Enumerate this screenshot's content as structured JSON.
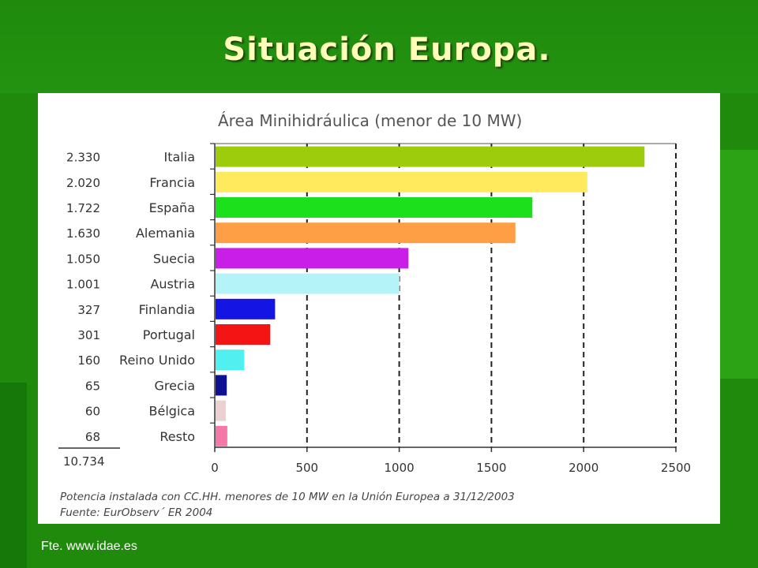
{
  "slide_title": "Situación Europa.",
  "credit": "Fte. www.idae.es",
  "chart_data": {
    "type": "bar",
    "orientation": "horizontal",
    "title": "Área Minihidráulica (menor de 10 MW)",
    "categories": [
      "Italia",
      "Francia",
      "España",
      "Alemania",
      "Suecia",
      "Austria",
      "Finlandia",
      "Portugal",
      "Reino Unido",
      "Grecia",
      "Bélgica",
      "Resto"
    ],
    "values": [
      2330,
      2020,
      1722,
      1630,
      1050,
      1001,
      327,
      301,
      160,
      65,
      60,
      68
    ],
    "value_labels": [
      "2.330",
      "2.020",
      "1.722",
      "1.630",
      "1.050",
      "1.001",
      "327",
      "301",
      "160",
      "65",
      "60",
      "68"
    ],
    "total_label": "10.734",
    "colors": [
      "#9ccc0c",
      "#ffe95c",
      "#1ce01c",
      "#ff9f45",
      "#c81ee8",
      "#b4f4f8",
      "#1414e4",
      "#f41414",
      "#50f0f0",
      "#101094",
      "#ead0d0",
      "#f478a8"
    ],
    "xlim": [
      0,
      2500
    ],
    "xticks": [
      "0",
      "500",
      "1000",
      "1500",
      "2000",
      "2500"
    ],
    "grid": "dashed vertical",
    "footnote_line1": "Potencia instalada con CC.HH. menores de 10 MW en la Unión Europea a 31/12/2003",
    "footnote_line2": "Fuente: EurObserv´ ER 2004"
  }
}
